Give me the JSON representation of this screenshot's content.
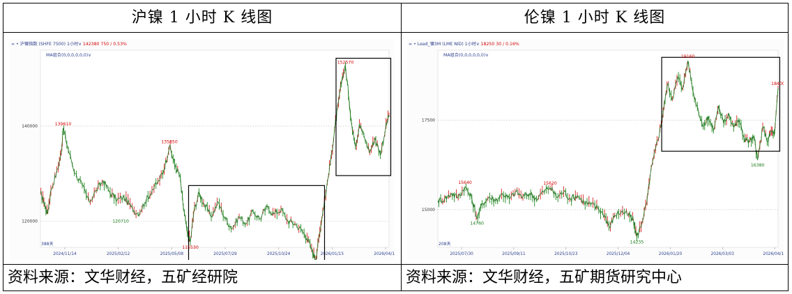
{
  "header": {
    "left_title": "沪镍 1 小时 K 线图",
    "right_title": "伦镍 1 小时 K 线图"
  },
  "footer": {
    "left_source": "资料来源：文华财经，五矿经研院",
    "right_source": "资料来源：文华财经，五矿期货研究中心"
  },
  "chart_data": [
    {
      "type": "line",
      "toolbar": {
        "symbol": "沪镍指数 (SHFE 7500)",
        "period": "1小时",
        "price": "142380",
        "change": "750 / 0.53%"
      },
      "ma_label": "MA组合(0,0,0,0,0,0)",
      "bars_label": "388天",
      "ylim": [
        114500,
        156000
      ],
      "y_ticks": [
        140000,
        120000
      ],
      "x_ticks": [
        "2024/11/14",
        "2025/02/12",
        "2025/05/08",
        "2025/07/29",
        "2025/10/24",
        "2026/01/15",
        "2026/04/15"
      ],
      "annotations": [
        {
          "label": "139610",
          "color": "#d40000"
        },
        {
          "label": "135850",
          "color": "#d40000"
        },
        {
          "label": "120710",
          "color": "#1a7a1a"
        },
        {
          "label": "115530",
          "color": "#d40000"
        },
        {
          "label": "152570",
          "color": "#d40000"
        },
        {
          "label": "111990",
          "color": "#1a7a1a"
        }
      ],
      "path": [
        [
          0.0,
          126000
        ],
        [
          0.01,
          124000
        ],
        [
          0.02,
          121500
        ],
        [
          0.03,
          126500
        ],
        [
          0.05,
          131000
        ],
        [
          0.06,
          134500
        ],
        [
          0.065,
          139610
        ],
        [
          0.08,
          135000
        ],
        [
          0.1,
          130000
        ],
        [
          0.12,
          127500
        ],
        [
          0.14,
          124000
        ],
        [
          0.16,
          126500
        ],
        [
          0.18,
          128500
        ],
        [
          0.2,
          126000
        ],
        [
          0.22,
          124500
        ],
        [
          0.24,
          125000
        ],
        [
          0.26,
          123000
        ],
        [
          0.28,
          121500
        ],
        [
          0.3,
          124000
        ],
        [
          0.32,
          126500
        ],
        [
          0.34,
          128500
        ],
        [
          0.355,
          131000
        ],
        [
          0.37,
          135850
        ],
        [
          0.385,
          132000
        ],
        [
          0.4,
          129500
        ],
        [
          0.41,
          123000
        ],
        [
          0.42,
          118000
        ],
        [
          0.43,
          115530
        ],
        [
          0.44,
          122000
        ],
        [
          0.455,
          126000
        ],
        [
          0.47,
          123500
        ],
        [
          0.49,
          121000
        ],
        [
          0.51,
          124000
        ],
        [
          0.53,
          120500
        ],
        [
          0.55,
          118500
        ],
        [
          0.57,
          121000
        ],
        [
          0.59,
          119500
        ],
        [
          0.61,
          122000
        ],
        [
          0.63,
          120500
        ],
        [
          0.65,
          123000
        ],
        [
          0.67,
          121500
        ],
        [
          0.69,
          122500
        ],
        [
          0.71,
          120000
        ],
        [
          0.73,
          119500
        ],
        [
          0.75,
          118000
        ],
        [
          0.765,
          116500
        ],
        [
          0.78,
          113500
        ],
        [
          0.79,
          111990
        ],
        [
          0.8,
          117000
        ],
        [
          0.81,
          122000
        ],
        [
          0.825,
          129000
        ],
        [
          0.835,
          134000
        ],
        [
          0.845,
          140000
        ],
        [
          0.855,
          145000
        ],
        [
          0.865,
          150000
        ],
        [
          0.875,
          152570
        ],
        [
          0.885,
          146000
        ],
        [
          0.895,
          139000
        ],
        [
          0.905,
          136000
        ],
        [
          0.915,
          140500
        ],
        [
          0.93,
          137500
        ],
        [
          0.945,
          134500
        ],
        [
          0.96,
          137500
        ],
        [
          0.975,
          134000
        ],
        [
          0.99,
          139500
        ],
        [
          1.0,
          142380
        ]
      ],
      "boxes": [
        {
          "x0": 0.425,
          "x1": 0.815,
          "y0": 127500,
          "y1": 110800
        },
        {
          "x0": 0.848,
          "x1": 1.005,
          "y0": 154300,
          "y1": 129600
        }
      ]
    },
    {
      "type": "line",
      "toolbar": {
        "symbol": "Lead_镍3M (LME NID)",
        "period": "1小时",
        "price": "18250",
        "change": "30 / 0.16%"
      },
      "ma_label": "MA组合(0,0,0,0,0,0)",
      "bars_label": "208天",
      "ylim": [
        13950,
        19450
      ],
      "y_ticks": [
        17500,
        15000
      ],
      "x_ticks": [
        "2025/07/30",
        "2025/09/11",
        "2025/10/23",
        "2025/12/04",
        "2026/01/20",
        "2026/03/03",
        "2026/04/16"
      ],
      "annotations": [
        {
          "label": "15640",
          "color": "#d40000"
        },
        {
          "label": "14760",
          "color": "#1a7a1a"
        },
        {
          "label": "15620",
          "color": "#d40000"
        },
        {
          "label": "14235",
          "color": "#1a7a1a"
        },
        {
          "label": "19160",
          "color": "#d40000"
        },
        {
          "label": "16380",
          "color": "#1a7a1a"
        },
        {
          "label": "18400",
          "color": "#d40000"
        }
      ],
      "path": [
        [
          0.0,
          15250
        ],
        [
          0.02,
          15300
        ],
        [
          0.04,
          15450
        ],
        [
          0.06,
          15350
        ],
        [
          0.08,
          15640
        ],
        [
          0.1,
          15300
        ],
        [
          0.115,
          14760
        ],
        [
          0.13,
          15150
        ],
        [
          0.15,
          15350
        ],
        [
          0.17,
          15250
        ],
        [
          0.19,
          15450
        ],
        [
          0.21,
          15300
        ],
        [
          0.23,
          15500
        ],
        [
          0.25,
          15350
        ],
        [
          0.27,
          15450
        ],
        [
          0.29,
          15300
        ],
        [
          0.31,
          15500
        ],
        [
          0.33,
          15620
        ],
        [
          0.35,
          15350
        ],
        [
          0.37,
          15500
        ],
        [
          0.39,
          15300
        ],
        [
          0.41,
          15400
        ],
        [
          0.43,
          15200
        ],
        [
          0.45,
          15150
        ],
        [
          0.47,
          15050
        ],
        [
          0.49,
          14850
        ],
        [
          0.505,
          14500
        ],
        [
          0.52,
          14850
        ],
        [
          0.54,
          14950
        ],
        [
          0.56,
          14850
        ],
        [
          0.575,
          14700
        ],
        [
          0.585,
          14235
        ],
        [
          0.6,
          14650
        ],
        [
          0.615,
          15250
        ],
        [
          0.625,
          16000
        ],
        [
          0.64,
          16700
        ],
        [
          0.655,
          17300
        ],
        [
          0.665,
          17900
        ],
        [
          0.675,
          18500
        ],
        [
          0.69,
          18100
        ],
        [
          0.705,
          18700
        ],
        [
          0.72,
          18400
        ],
        [
          0.735,
          19160
        ],
        [
          0.75,
          18300
        ],
        [
          0.765,
          17800
        ],
        [
          0.78,
          17300
        ],
        [
          0.795,
          17600
        ],
        [
          0.81,
          17200
        ],
        [
          0.825,
          17900
        ],
        [
          0.84,
          17400
        ],
        [
          0.855,
          17700
        ],
        [
          0.87,
          17300
        ],
        [
          0.885,
          17500
        ],
        [
          0.9,
          17000
        ],
        [
          0.915,
          16900
        ],
        [
          0.93,
          17000
        ],
        [
          0.94,
          16380
        ],
        [
          0.955,
          17300
        ],
        [
          0.97,
          16900
        ],
        [
          0.98,
          17200
        ],
        [
          0.99,
          17100
        ],
        [
          1.0,
          18400
        ]
      ],
      "boxes": [
        {
          "x0": 0.658,
          "x1": 1.005,
          "y0": 19250,
          "y1": 16630
        }
      ]
    }
  ]
}
